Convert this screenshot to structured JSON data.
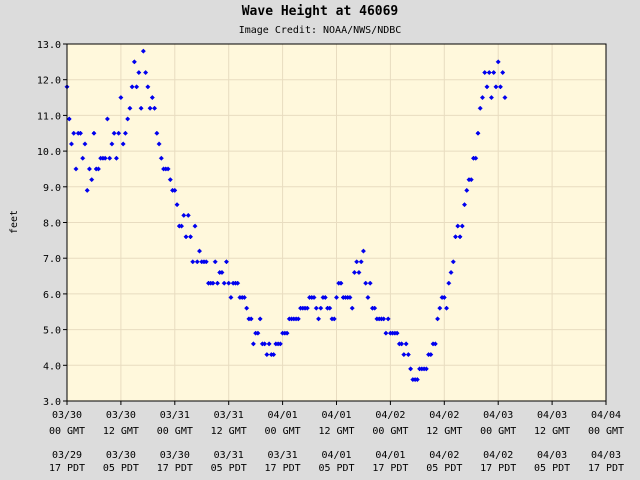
{
  "chart_data": {
    "type": "scatter",
    "title": "Wave Height at 46069",
    "subtitle": "Image Credit: NOAA/NWS/NDBC",
    "ylabel": "feet",
    "xlabel": "",
    "ylim": [
      3.0,
      13.0
    ],
    "yticks": [
      "3.0",
      "4.0",
      "5.0",
      "6.0",
      "7.0",
      "8.0",
      "9.0",
      "10.0",
      "11.0",
      "12.0",
      "13.0"
    ],
    "xlim_hours": [
      0,
      120
    ],
    "grid": true,
    "x_ticks": [
      {
        "hour": 0,
        "gmt_date": "03/30",
        "gmt_time": "00 GMT",
        "pdt_date": "03/29",
        "pdt_time": "17 PDT"
      },
      {
        "hour": 12,
        "gmt_date": "03/30",
        "gmt_time": "12 GMT",
        "pdt_date": "03/30",
        "pdt_time": "05 PDT"
      },
      {
        "hour": 24,
        "gmt_date": "03/31",
        "gmt_time": "00 GMT",
        "pdt_date": "03/30",
        "pdt_time": "17 PDT"
      },
      {
        "hour": 36,
        "gmt_date": "03/31",
        "gmt_time": "12 GMT",
        "pdt_date": "03/31",
        "pdt_time": "05 PDT"
      },
      {
        "hour": 48,
        "gmt_date": "04/01",
        "gmt_time": "00 GMT",
        "pdt_date": "03/31",
        "pdt_time": "17 PDT"
      },
      {
        "hour": 60,
        "gmt_date": "04/01",
        "gmt_time": "12 GMT",
        "pdt_date": "04/01",
        "pdt_time": "05 PDT"
      },
      {
        "hour": 72,
        "gmt_date": "04/02",
        "gmt_time": "00 GMT",
        "pdt_date": "04/01",
        "pdt_time": "17 PDT"
      },
      {
        "hour": 84,
        "gmt_date": "04/02",
        "gmt_time": "12 GMT",
        "pdt_date": "04/02",
        "pdt_time": "05 PDT"
      },
      {
        "hour": 96,
        "gmt_date": "04/03",
        "gmt_time": "00 GMT",
        "pdt_date": "04/02",
        "pdt_time": "17 PDT"
      },
      {
        "hour": 108,
        "gmt_date": "04/03",
        "gmt_time": "12 GMT",
        "pdt_date": "04/03",
        "pdt_time": "05 PDT"
      },
      {
        "hour": 120,
        "gmt_date": "04/04",
        "gmt_time": "00 GMT",
        "pdt_date": "04/03",
        "pdt_time": "17 PDT"
      }
    ],
    "series": [
      {
        "values": [
          [
            0.0,
            11.8
          ],
          [
            0.5,
            10.9
          ],
          [
            1.0,
            10.2
          ],
          [
            1.5,
            10.5
          ],
          [
            2.0,
            9.5
          ],
          [
            2.5,
            10.5
          ],
          [
            3.0,
            10.5
          ],
          [
            3.5,
            9.8
          ],
          [
            4.0,
            10.2
          ],
          [
            4.5,
            8.9
          ],
          [
            5.0,
            9.5
          ],
          [
            5.5,
            9.2
          ],
          [
            6.0,
            10.5
          ],
          [
            6.5,
            9.5
          ],
          [
            7.0,
            9.5
          ],
          [
            7.5,
            9.8
          ],
          [
            8.0,
            9.8
          ],
          [
            8.5,
            9.8
          ],
          [
            9.0,
            10.9
          ],
          [
            9.5,
            9.8
          ],
          [
            10.0,
            10.2
          ],
          [
            10.5,
            10.5
          ],
          [
            11.0,
            9.8
          ],
          [
            11.5,
            10.5
          ],
          [
            12.0,
            11.5
          ],
          [
            12.5,
            10.2
          ],
          [
            13.0,
            10.5
          ],
          [
            13.5,
            10.9
          ],
          [
            14.0,
            11.2
          ],
          [
            14.5,
            11.8
          ],
          [
            15.0,
            12.5
          ],
          [
            15.5,
            11.8
          ],
          [
            16.0,
            12.2
          ],
          [
            16.5,
            11.2
          ],
          [
            17.0,
            12.8
          ],
          [
            17.5,
            12.2
          ],
          [
            18.0,
            11.8
          ],
          [
            18.5,
            11.2
          ],
          [
            19.0,
            11.5
          ],
          [
            19.5,
            11.2
          ],
          [
            20.0,
            10.5
          ],
          [
            20.5,
            10.2
          ],
          [
            21.0,
            9.8
          ],
          [
            21.5,
            9.5
          ],
          [
            22.0,
            9.5
          ],
          [
            22.5,
            9.5
          ],
          [
            23.0,
            9.2
          ],
          [
            23.5,
            8.9
          ],
          [
            24.0,
            8.9
          ],
          [
            24.5,
            8.5
          ],
          [
            25.0,
            7.9
          ],
          [
            25.5,
            7.9
          ],
          [
            26.0,
            8.2
          ],
          [
            26.5,
            7.6
          ],
          [
            27.0,
            8.2
          ],
          [
            27.5,
            7.6
          ],
          [
            28.0,
            6.9
          ],
          [
            28.5,
            7.9
          ],
          [
            29.0,
            6.9
          ],
          [
            29.5,
            7.2
          ],
          [
            30.0,
            6.9
          ],
          [
            30.5,
            6.9
          ],
          [
            31.0,
            6.9
          ],
          [
            31.5,
            6.3
          ],
          [
            32.0,
            6.3
          ],
          [
            32.5,
            6.3
          ],
          [
            33.0,
            6.9
          ],
          [
            33.5,
            6.3
          ],
          [
            34.0,
            6.6
          ],
          [
            34.5,
            6.6
          ],
          [
            35.0,
            6.3
          ],
          [
            35.5,
            6.9
          ],
          [
            36.0,
            6.3
          ],
          [
            36.5,
            5.9
          ],
          [
            37.0,
            6.3
          ],
          [
            37.5,
            6.3
          ],
          [
            38.0,
            6.3
          ],
          [
            38.5,
            5.9
          ],
          [
            39.0,
            5.9
          ],
          [
            39.5,
            5.9
          ],
          [
            40.0,
            5.6
          ],
          [
            40.5,
            5.3
          ],
          [
            41.0,
            5.3
          ],
          [
            41.5,
            4.6
          ],
          [
            42.0,
            4.9
          ],
          [
            42.5,
            4.9
          ],
          [
            43.0,
            5.3
          ],
          [
            43.5,
            4.6
          ],
          [
            44.0,
            4.6
          ],
          [
            44.5,
            4.3
          ],
          [
            45.0,
            4.6
          ],
          [
            45.5,
            4.3
          ],
          [
            46.0,
            4.3
          ],
          [
            46.5,
            4.6
          ],
          [
            47.0,
            4.6
          ],
          [
            47.5,
            4.6
          ],
          [
            48.0,
            4.9
          ],
          [
            48.5,
            4.9
          ],
          [
            49.0,
            4.9
          ],
          [
            49.5,
            5.3
          ],
          [
            50.0,
            5.3
          ],
          [
            50.5,
            5.3
          ],
          [
            51.0,
            5.3
          ],
          [
            51.5,
            5.3
          ],
          [
            52.0,
            5.6
          ],
          [
            52.5,
            5.6
          ],
          [
            53.0,
            5.6
          ],
          [
            53.5,
            5.6
          ],
          [
            54.0,
            5.9
          ],
          [
            54.5,
            5.9
          ],
          [
            55.0,
            5.9
          ],
          [
            55.5,
            5.6
          ],
          [
            56.0,
            5.3
          ],
          [
            56.5,
            5.6
          ],
          [
            57.0,
            5.9
          ],
          [
            57.5,
            5.9
          ],
          [
            58.0,
            5.6
          ],
          [
            58.5,
            5.6
          ],
          [
            59.0,
            5.3
          ],
          [
            59.5,
            5.3
          ],
          [
            60.0,
            5.9
          ],
          [
            60.5,
            6.3
          ],
          [
            61.0,
            6.3
          ],
          [
            61.5,
            5.9
          ],
          [
            62.0,
            5.9
          ],
          [
            62.5,
            5.9
          ],
          [
            63.0,
            5.9
          ],
          [
            63.5,
            5.6
          ],
          [
            64.0,
            6.6
          ],
          [
            64.5,
            6.9
          ],
          [
            65.0,
            6.6
          ],
          [
            65.5,
            6.9
          ],
          [
            66.0,
            7.2
          ],
          [
            66.5,
            6.3
          ],
          [
            67.0,
            5.9
          ],
          [
            67.5,
            6.3
          ],
          [
            68.0,
            5.6
          ],
          [
            68.5,
            5.6
          ],
          [
            69.0,
            5.3
          ],
          [
            69.5,
            5.3
          ],
          [
            70.0,
            5.3
          ],
          [
            70.5,
            5.3
          ],
          [
            71.0,
            4.9
          ],
          [
            71.5,
            5.3
          ],
          [
            72.0,
            4.9
          ],
          [
            72.5,
            4.9
          ],
          [
            73.0,
            4.9
          ],
          [
            73.5,
            4.9
          ],
          [
            74.0,
            4.6
          ],
          [
            74.5,
            4.6
          ],
          [
            75.0,
            4.3
          ],
          [
            75.5,
            4.6
          ],
          [
            76.0,
            4.3
          ],
          [
            76.5,
            3.9
          ],
          [
            77.0,
            3.6
          ],
          [
            77.5,
            3.6
          ],
          [
            78.0,
            3.6
          ],
          [
            78.5,
            3.9
          ],
          [
            79.0,
            3.9
          ],
          [
            79.5,
            3.9
          ],
          [
            80.0,
            3.9
          ],
          [
            80.5,
            4.3
          ],
          [
            81.0,
            4.3
          ],
          [
            81.5,
            4.6
          ],
          [
            82.0,
            4.6
          ],
          [
            82.5,
            5.3
          ],
          [
            83.0,
            5.6
          ],
          [
            83.5,
            5.9
          ],
          [
            84.0,
            5.9
          ],
          [
            84.5,
            5.6
          ],
          [
            85.0,
            6.3
          ],
          [
            85.5,
            6.6
          ],
          [
            86.0,
            6.9
          ],
          [
            86.5,
            7.6
          ],
          [
            87.0,
            7.9
          ],
          [
            87.5,
            7.6
          ],
          [
            88.0,
            7.9
          ],
          [
            88.5,
            8.5
          ],
          [
            89.0,
            8.9
          ],
          [
            89.5,
            9.2
          ],
          [
            90.0,
            9.2
          ],
          [
            90.5,
            9.8
          ],
          [
            91.0,
            9.8
          ],
          [
            91.5,
            10.5
          ],
          [
            92.0,
            11.2
          ],
          [
            92.5,
            11.5
          ],
          [
            93.0,
            12.2
          ],
          [
            93.5,
            11.8
          ],
          [
            94.0,
            12.2
          ],
          [
            94.5,
            11.5
          ],
          [
            95.0,
            12.2
          ],
          [
            95.5,
            11.8
          ],
          [
            96.0,
            12.5
          ],
          [
            96.5,
            11.8
          ],
          [
            97.0,
            12.2
          ],
          [
            97.5,
            11.5
          ]
        ]
      }
    ]
  },
  "colors": {
    "background": "#dcdcdc",
    "plot_area": "#fff8dc",
    "grid": "#e8dcc0",
    "marker": "#0000ee"
  }
}
